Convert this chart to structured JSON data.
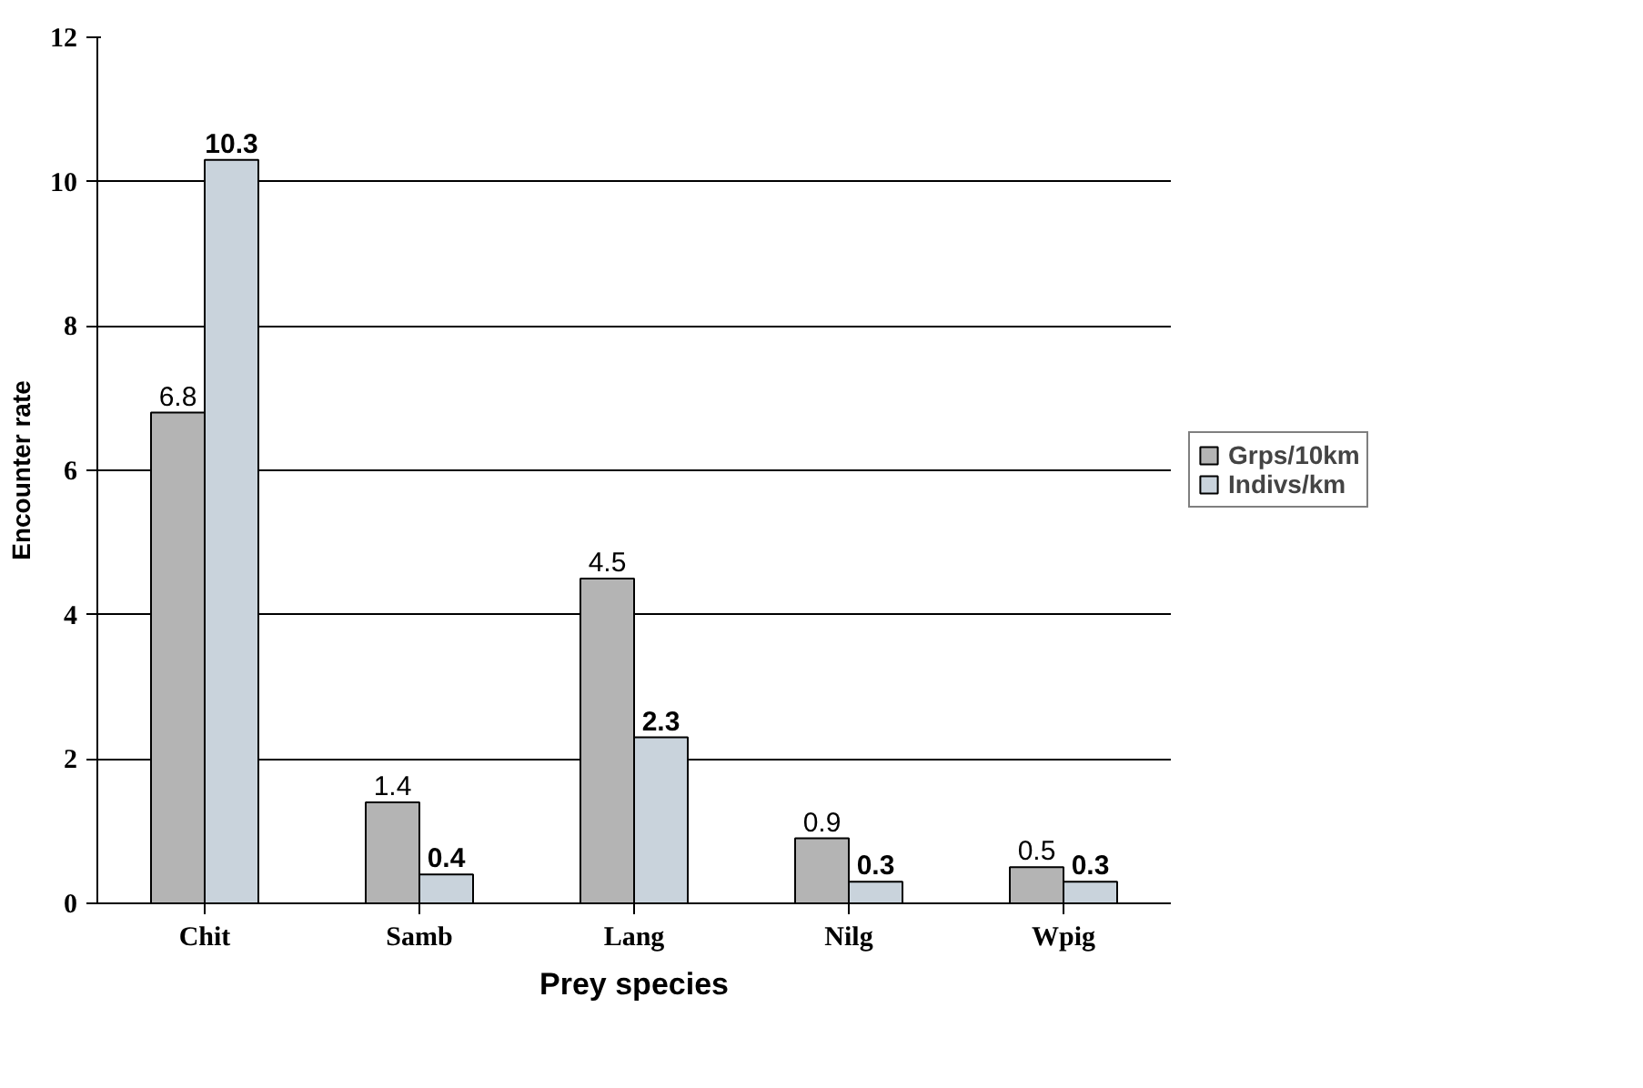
{
  "chart_data": {
    "type": "bar",
    "xlabel": "Prey species",
    "ylabel": "Encounter rate",
    "categories": [
      "Chit",
      "Samb",
      "Lang",
      "Nilg",
      "Wpig"
    ],
    "series": [
      {
        "name": "Grps/10km",
        "color": "#b4b4b4",
        "values": [
          6.8,
          1.4,
          4.5,
          0.9,
          0.5
        ]
      },
      {
        "name": "Indivs/km",
        "color": "#c9d3dc",
        "values": [
          10.3,
          0.4,
          2.3,
          0.3,
          0.3
        ]
      }
    ],
    "ylim": [
      0,
      12
    ],
    "yticks": [
      0,
      2,
      4,
      6,
      8,
      10,
      12
    ],
    "grid": "y",
    "legend": "right",
    "data_labels": true
  }
}
